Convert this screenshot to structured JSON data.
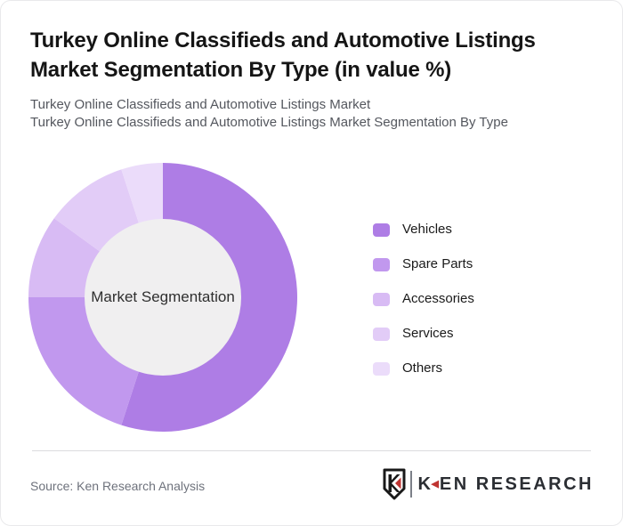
{
  "page": {
    "title_line1": "Turkey Online Classifieds and Automotive Listings",
    "title_line2": "Market Segmentation By Type (in value %)",
    "subtitle_line1": "Turkey Online Classifieds and Automotive Listings Market",
    "subtitle_line2": "Turkey Online Classifieds and Automotive Listings Market Segmentation By Type"
  },
  "chart_data": {
    "type": "pie",
    "variant": "donut",
    "title": "Turkey Online Classifieds and Automotive Listings Market Segmentation By Type (in value %)",
    "center_label": "Market Segmentation",
    "categories": [
      "Vehicles",
      "Spare Parts",
      "Accessories",
      "Services",
      "Others"
    ],
    "values": [
      55,
      20,
      10,
      10,
      5
    ],
    "unit": "value %",
    "colors": [
      "#ae7de5",
      "#c198ee",
      "#d8bbf4",
      "#e2ccf7",
      "#ebdcfa"
    ],
    "hole_color": "#f0eff0",
    "start_angle_deg": 0,
    "direction": "clockwise",
    "legend_position": "right",
    "data_labels_shown": false
  },
  "footer": {
    "source": "Source: Ken Research Analysis",
    "logo": {
      "shield_letter": "K",
      "wordmark_first": "K",
      "wordmark_triangle": "◀",
      "wordmark_rest": "EN RESEARCH",
      "red": "#bf3431",
      "dark": "#2b2e33"
    }
  }
}
